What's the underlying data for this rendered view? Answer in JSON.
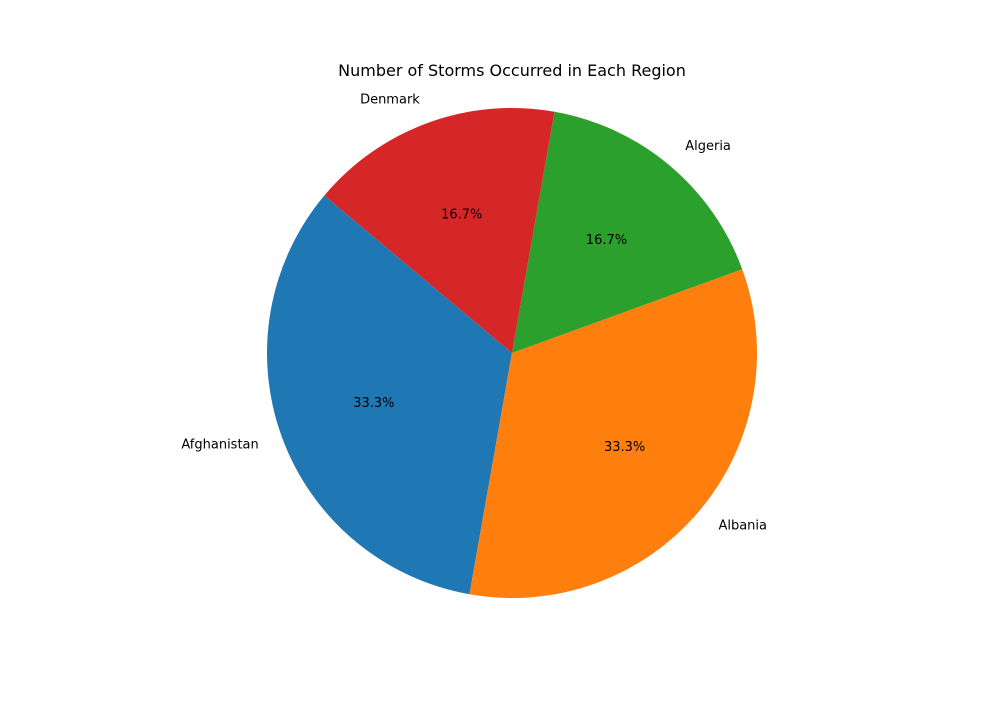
{
  "chart_data": {
    "type": "pie",
    "title": "Number of Storms Occurred in Each Region",
    "categories": [
      "Afghanistan",
      "Albania",
      "Algeria",
      "Denmark"
    ],
    "values": [
      2,
      2,
      1,
      1
    ],
    "percent_labels": [
      "33.3%",
      "33.3%",
      "16.7%",
      "16.7%"
    ],
    "colors": [
      "#1f77b4",
      "#ff7f0e",
      "#2ca02c",
      "#d62728"
    ],
    "start_angle_deg": 140,
    "direction": "counterclockwise"
  }
}
